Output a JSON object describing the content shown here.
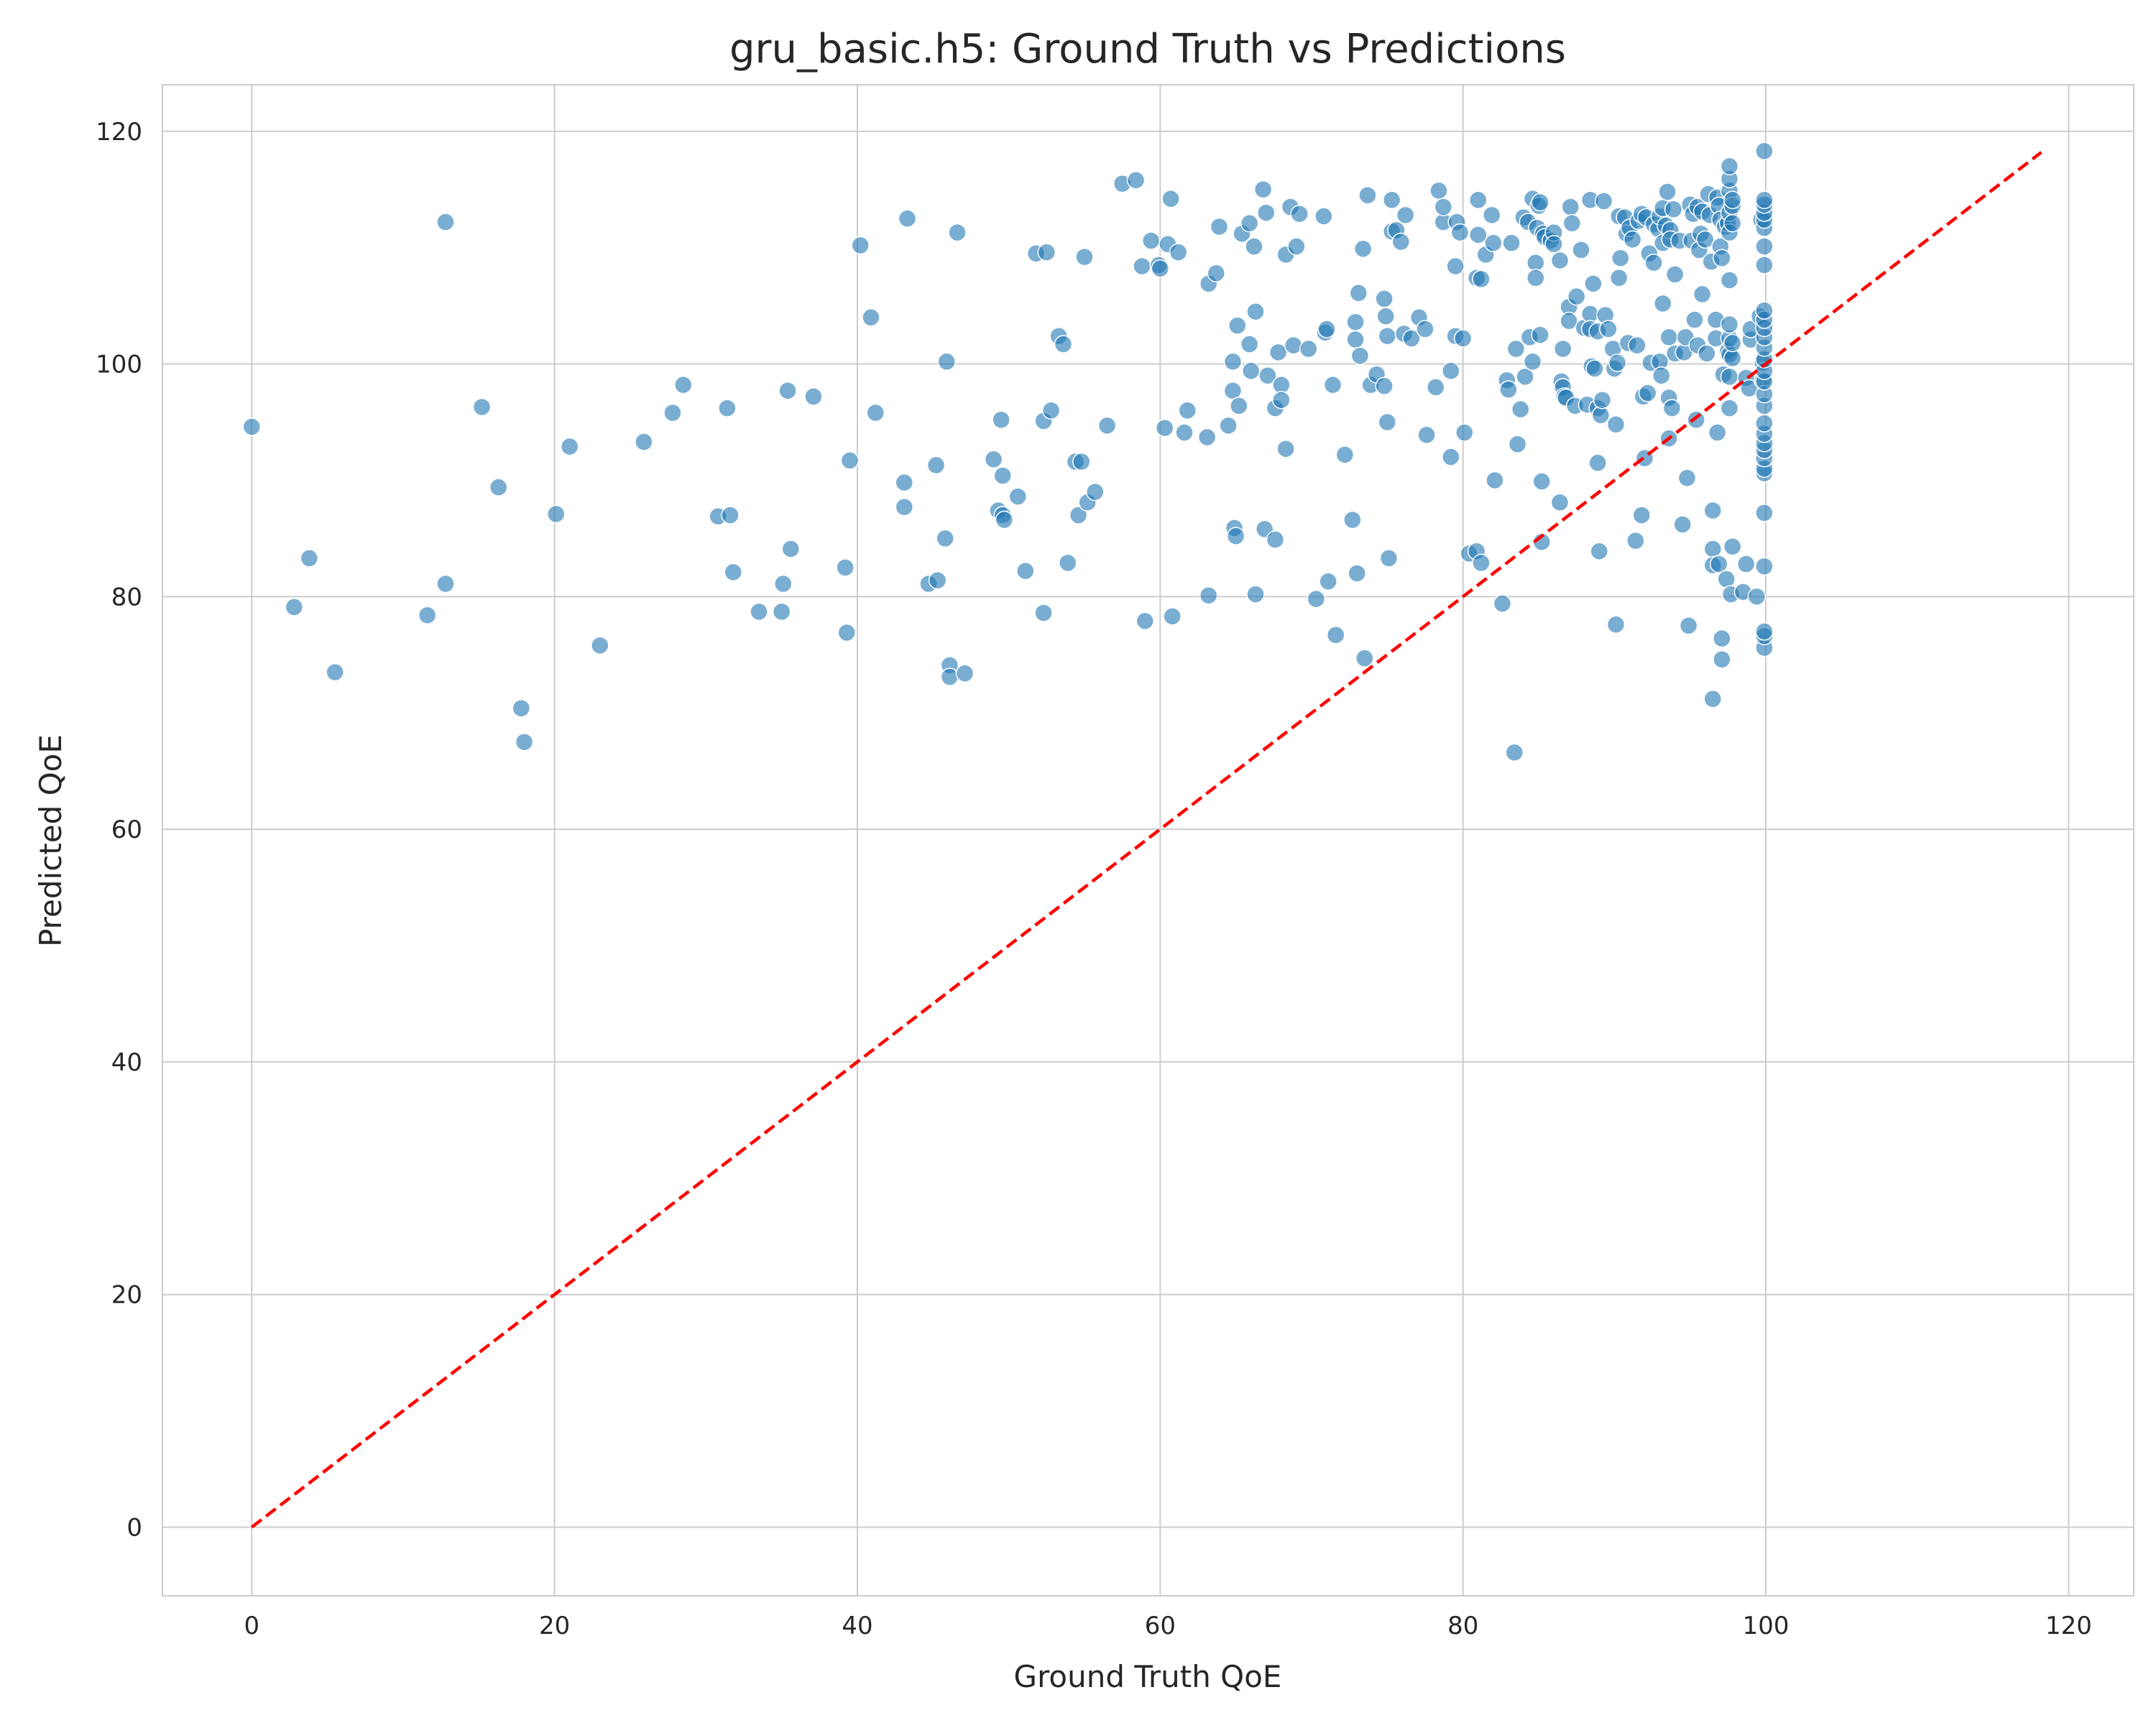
{
  "chart_data": {
    "type": "scatter",
    "title": "gru_basic.h5: Ground Truth vs Predictions",
    "xlabel": "Ground Truth QoE",
    "ylabel": "Predicted QoE",
    "xlim": [
      -5.9,
      124.3
    ],
    "ylim": [
      -5.9,
      124.0
    ],
    "xticks": [
      0,
      20,
      40,
      60,
      80,
      100,
      120
    ],
    "yticks": [
      0,
      20,
      40,
      60,
      80,
      100,
      120
    ],
    "grid": true,
    "reference_line": {
      "x": [
        0,
        118.2
      ],
      "y": [
        0,
        118.2
      ],
      "style": "dashed",
      "color": "#ff0000"
    },
    "marker_color": "#1f77b4",
    "points": [
      [
        0.0,
        94.6
      ],
      [
        2.8,
        79.1
      ],
      [
        3.8,
        83.3
      ],
      [
        5.5,
        73.5
      ],
      [
        11.6,
        78.4
      ],
      [
        12.8,
        112.2
      ],
      [
        12.8,
        81.1
      ],
      [
        15.2,
        96.3
      ],
      [
        16.3,
        89.4
      ],
      [
        17.8,
        70.4
      ],
      [
        18.0,
        67.5
      ],
      [
        20.1,
        87.1
      ],
      [
        21.0,
        92.9
      ],
      [
        23.0,
        75.8
      ],
      [
        25.9,
        93.3
      ],
      [
        27.8,
        95.8
      ],
      [
        28.5,
        98.2
      ],
      [
        30.8,
        86.9
      ],
      [
        31.4,
        96.2
      ],
      [
        31.6,
        87.0
      ],
      [
        31.8,
        82.1
      ],
      [
        33.5,
        78.7
      ],
      [
        35.0,
        78.7
      ],
      [
        35.1,
        81.1
      ],
      [
        35.4,
        97.7
      ],
      [
        35.6,
        84.1
      ],
      [
        37.1,
        97.2
      ],
      [
        39.2,
        82.5
      ],
      [
        39.3,
        76.9
      ],
      [
        39.5,
        91.7
      ],
      [
        40.2,
        110.2
      ],
      [
        40.9,
        104.0
      ],
      [
        41.2,
        95.8
      ],
      [
        43.1,
        89.8
      ],
      [
        43.1,
        87.7
      ],
      [
        43.3,
        112.5
      ],
      [
        44.7,
        81.1
      ],
      [
        45.2,
        91.3
      ],
      [
        45.3,
        81.4
      ],
      [
        45.8,
        85.0
      ],
      [
        45.9,
        100.2
      ],
      [
        46.1,
        74.1
      ],
      [
        46.1,
        73.1
      ],
      [
        46.6,
        111.3
      ],
      [
        47.1,
        73.4
      ],
      [
        49.0,
        91.8
      ],
      [
        49.3,
        87.4
      ],
      [
        49.5,
        95.2
      ],
      [
        49.6,
        90.4
      ],
      [
        49.6,
        87.0
      ],
      [
        49.7,
        86.6
      ],
      [
        50.6,
        88.6
      ],
      [
        51.1,
        82.2
      ],
      [
        51.8,
        109.5
      ],
      [
        52.3,
        78.6
      ],
      [
        52.3,
        95.1
      ],
      [
        52.5,
        109.6
      ],
      [
        52.8,
        96.0
      ],
      [
        53.3,
        102.4
      ],
      [
        53.6,
        101.7
      ],
      [
        53.9,
        82.9
      ],
      [
        54.4,
        91.6
      ],
      [
        54.6,
        87.0
      ],
      [
        54.8,
        91.6
      ],
      [
        55.0,
        109.2
      ],
      [
        55.2,
        88.1
      ],
      [
        55.7,
        89.0
      ],
      [
        56.5,
        94.7
      ],
      [
        57.5,
        115.5
      ],
      [
        58.4,
        115.8
      ],
      [
        58.8,
        108.4
      ],
      [
        59.0,
        77.9
      ],
      [
        59.4,
        110.6
      ],
      [
        59.9,
        108.5
      ],
      [
        60.0,
        108.2
      ],
      [
        60.3,
        94.5
      ],
      [
        60.5,
        110.3
      ],
      [
        60.7,
        114.2
      ],
      [
        60.8,
        78.3
      ],
      [
        61.2,
        109.6
      ],
      [
        61.6,
        94.1
      ],
      [
        61.8,
        96.0
      ],
      [
        63.1,
        93.7
      ],
      [
        63.2,
        106.9
      ],
      [
        63.2,
        80.1
      ],
      [
        63.7,
        107.8
      ],
      [
        63.9,
        111.8
      ],
      [
        64.5,
        94.7
      ],
      [
        64.8,
        97.7
      ],
      [
        64.8,
        100.2
      ],
      [
        64.9,
        85.9
      ],
      [
        65.0,
        85.2
      ],
      [
        65.1,
        103.3
      ],
      [
        65.2,
        96.4
      ],
      [
        65.4,
        111.2
      ],
      [
        65.9,
        101.7
      ],
      [
        65.9,
        112.1
      ],
      [
        66.0,
        99.4
      ],
      [
        66.2,
        110.1
      ],
      [
        66.3,
        104.5
      ],
      [
        66.3,
        80.2
      ],
      [
        66.8,
        115.0
      ],
      [
        66.9,
        85.8
      ],
      [
        67.0,
        113.0
      ],
      [
        67.1,
        99.0
      ],
      [
        67.6,
        84.9
      ],
      [
        67.6,
        96.2
      ],
      [
        67.8,
        101.0
      ],
      [
        68.0,
        98.2
      ],
      [
        68.0,
        96.9
      ],
      [
        68.3,
        109.4
      ],
      [
        68.3,
        92.7
      ],
      [
        68.6,
        113.5
      ],
      [
        68.8,
        101.6
      ],
      [
        69.0,
        110.1
      ],
      [
        69.2,
        112.9
      ],
      [
        69.8,
        101.3
      ],
      [
        70.3,
        79.8
      ],
      [
        70.8,
        112.7
      ],
      [
        70.9,
        102.7
      ],
      [
        71.0,
        103.0
      ],
      [
        71.1,
        81.3
      ],
      [
        71.4,
        98.2
      ],
      [
        71.6,
        76.7
      ],
      [
        72.2,
        92.2
      ],
      [
        72.7,
        86.6
      ],
      [
        72.9,
        102.1
      ],
      [
        72.9,
        103.6
      ],
      [
        73.0,
        82.0
      ],
      [
        73.1,
        106.1
      ],
      [
        73.2,
        100.7
      ],
      [
        73.4,
        109.9
      ],
      [
        73.5,
        74.7
      ],
      [
        73.7,
        114.5
      ],
      [
        73.9,
        98.2
      ],
      [
        74.3,
        99.1
      ],
      [
        74.8,
        98.1
      ],
      [
        74.8,
        105.6
      ],
      [
        74.9,
        104.1
      ],
      [
        75.0,
        102.4
      ],
      [
        75.0,
        95.0
      ],
      [
        75.1,
        83.3
      ],
      [
        75.3,
        111.4
      ],
      [
        75.3,
        114.1
      ],
      [
        75.6,
        111.5
      ],
      [
        75.9,
        110.5
      ],
      [
        76.1,
        102.6
      ],
      [
        76.2,
        112.8
      ],
      [
        76.6,
        102.2
      ],
      [
        77.1,
        104.0
      ],
      [
        77.5,
        103.0
      ],
      [
        77.6,
        93.9
      ],
      [
        78.2,
        98.0
      ],
      [
        78.4,
        114.9
      ],
      [
        78.7,
        112.2
      ],
      [
        78.7,
        113.5
      ],
      [
        79.2,
        99.4
      ],
      [
        79.2,
        92.0
      ],
      [
        79.5,
        102.4
      ],
      [
        79.5,
        108.4
      ],
      [
        79.6,
        112.2
      ],
      [
        79.8,
        111.3
      ],
      [
        80.0,
        102.2
      ],
      [
        80.1,
        94.1
      ],
      [
        80.4,
        83.7
      ],
      [
        80.9,
        83.9
      ],
      [
        80.9,
        107.4
      ],
      [
        81.0,
        114.1
      ],
      [
        81.0,
        111.1
      ],
      [
        81.2,
        107.3
      ],
      [
        81.2,
        82.9
      ],
      [
        81.5,
        109.4
      ],
      [
        81.9,
        112.8
      ],
      [
        82.0,
        110.4
      ],
      [
        82.1,
        90.0
      ],
      [
        82.6,
        79.4
      ],
      [
        82.9,
        98.6
      ],
      [
        83.0,
        97.8
      ],
      [
        83.2,
        110.4
      ],
      [
        83.4,
        66.6
      ],
      [
        83.5,
        101.3
      ],
      [
        83.6,
        93.1
      ],
      [
        83.8,
        96.1
      ],
      [
        84.0,
        112.6
      ],
      [
        84.1,
        98.9
      ],
      [
        84.3,
        112.2
      ],
      [
        84.4,
        102.3
      ],
      [
        84.6,
        114.2
      ],
      [
        84.6,
        100.2
      ],
      [
        84.8,
        108.7
      ],
      [
        84.8,
        107.4
      ],
      [
        84.9,
        111.7
      ],
      [
        85.0,
        113.6
      ],
      [
        85.1,
        102.5
      ],
      [
        85.1,
        113.9
      ],
      [
        85.2,
        89.9
      ],
      [
        85.2,
        84.7
      ],
      [
        85.3,
        111.2
      ],
      [
        85.4,
        110.9
      ],
      [
        85.8,
        110.6
      ],
      [
        86.0,
        111.3
      ],
      [
        86.0,
        110.3
      ],
      [
        86.4,
        108.9
      ],
      [
        86.4,
        88.1
      ],
      [
        86.5,
        98.5
      ],
      [
        86.6,
        98.0
      ],
      [
        86.6,
        101.3
      ],
      [
        86.7,
        97.2
      ],
      [
        86.8,
        97.1
      ],
      [
        87.0,
        104.9
      ],
      [
        87.0,
        103.7
      ],
      [
        87.1,
        113.5
      ],
      [
        87.2,
        112.1
      ],
      [
        87.4,
        96.4
      ],
      [
        87.5,
        105.8
      ],
      [
        87.8,
        109.8
      ],
      [
        88.0,
        103.1
      ],
      [
        88.2,
        96.5
      ],
      [
        88.4,
        104.3
      ],
      [
        88.4,
        103.0
      ],
      [
        88.4,
        114.1
      ],
      [
        88.5,
        99.8
      ],
      [
        88.6,
        106.9
      ],
      [
        88.7,
        99.6
      ],
      [
        88.9,
        96.2
      ],
      [
        88.9,
        91.5
      ],
      [
        88.9,
        102.8
      ],
      [
        89.0,
        83.9
      ],
      [
        89.1,
        95.6
      ],
      [
        89.2,
        96.9
      ],
      [
        89.3,
        114.0
      ],
      [
        89.4,
        104.2
      ],
      [
        89.6,
        103.0
      ],
      [
        89.9,
        101.3
      ],
      [
        90.0,
        99.6
      ],
      [
        90.1,
        94.8
      ],
      [
        90.1,
        77.6
      ],
      [
        90.2,
        100.1
      ],
      [
        90.3,
        112.7
      ],
      [
        90.3,
        107.4
      ],
      [
        90.4,
        109.1
      ],
      [
        90.7,
        112.6
      ],
      [
        90.8,
        111.2
      ],
      [
        90.9,
        101.8
      ],
      [
        91.0,
        111.7
      ],
      [
        91.2,
        110.7
      ],
      [
        91.4,
        84.8
      ],
      [
        91.5,
        101.6
      ],
      [
        91.6,
        112.3
      ],
      [
        91.8,
        112.9
      ],
      [
        91.8,
        87.0
      ],
      [
        91.9,
        97.2
      ],
      [
        92.0,
        91.9
      ],
      [
        92.1,
        112.6
      ],
      [
        92.2,
        97.5
      ],
      [
        92.3,
        109.5
      ],
      [
        92.4,
        100.1
      ],
      [
        92.6,
        112.0
      ],
      [
        92.6,
        108.7
      ],
      [
        92.9,
        111.6
      ],
      [
        93.0,
        100.2
      ],
      [
        93.0,
        112.7
      ],
      [
        93.1,
        99.0
      ],
      [
        93.2,
        105.2
      ],
      [
        93.2,
        113.4
      ],
      [
        93.2,
        110.4
      ],
      [
        93.4,
        111.9
      ],
      [
        93.5,
        114.8
      ],
      [
        93.6,
        93.6
      ],
      [
        93.6,
        97.1
      ],
      [
        93.6,
        102.3
      ],
      [
        93.7,
        111.5
      ],
      [
        93.7,
        110.7
      ],
      [
        93.8,
        96.2
      ],
      [
        93.9,
        113.3
      ],
      [
        94.0,
        100.9
      ],
      [
        94.0,
        107.7
      ],
      [
        94.3,
        110.6
      ],
      [
        94.5,
        86.2
      ],
      [
        94.6,
        101.0
      ],
      [
        94.7,
        102.3
      ],
      [
        94.8,
        90.2
      ],
      [
        94.9,
        77.5
      ],
      [
        95.0,
        113.7
      ],
      [
        95.1,
        110.6
      ],
      [
        95.2,
        112.9
      ],
      [
        95.3,
        103.8
      ],
      [
        95.4,
        95.2
      ],
      [
        95.5,
        101.6
      ],
      [
        95.5,
        113.5
      ],
      [
        95.6,
        109.8
      ],
      [
        95.7,
        111.2
      ],
      [
        95.8,
        106.0
      ],
      [
        95.8,
        113.1
      ],
      [
        96.0,
        110.7
      ],
      [
        96.1,
        100.9
      ],
      [
        96.2,
        114.6
      ],
      [
        96.3,
        112.8
      ],
      [
        96.4,
        108.8
      ],
      [
        96.5,
        87.4
      ],
      [
        96.5,
        84.1
      ],
      [
        96.5,
        71.2
      ],
      [
        96.5,
        82.7
      ],
      [
        96.7,
        102.2
      ],
      [
        96.7,
        103.8
      ],
      [
        96.8,
        94.1
      ],
      [
        96.8,
        114.3
      ],
      [
        96.9,
        82.8
      ],
      [
        96.9,
        113.6
      ],
      [
        97.0,
        112.4
      ],
      [
        97.0,
        110.1
      ],
      [
        97.1,
        109.1
      ],
      [
        97.1,
        74.6
      ],
      [
        97.1,
        76.4
      ],
      [
        97.2,
        99.1
      ],
      [
        97.3,
        111.8
      ],
      [
        97.4,
        81.5
      ],
      [
        97.5,
        101.1
      ],
      [
        97.5,
        112.1
      ],
      [
        97.6,
        96.2
      ],
      [
        97.6,
        107.2
      ],
      [
        97.6,
        100.8
      ],
      [
        97.6,
        102.2
      ],
      [
        97.6,
        103.4
      ],
      [
        97.6,
        98.9
      ],
      [
        97.6,
        113.0
      ],
      [
        97.6,
        114.9
      ],
      [
        97.6,
        111.3
      ],
      [
        97.6,
        115.9
      ],
      [
        97.6,
        117.0
      ],
      [
        97.7,
        80.2
      ],
      [
        97.8,
        84.3
      ],
      [
        97.8,
        100.5
      ],
      [
        97.8,
        101.8
      ],
      [
        97.8,
        113.6
      ],
      [
        97.8,
        112.1
      ],
      [
        97.8,
        114.1
      ],
      [
        98.5,
        80.4
      ],
      [
        98.7,
        82.8
      ],
      [
        98.7,
        98.8
      ],
      [
        98.9,
        97.9
      ],
      [
        99.0,
        102.1
      ],
      [
        99.0,
        103.0
      ],
      [
        99.4,
        80.0
      ],
      [
        99.6,
        104.1
      ],
      [
        99.7,
        112.4
      ],
      [
        99.8,
        98.6
      ],
      [
        99.8,
        100.1
      ],
      [
        99.9,
        75.6
      ],
      [
        99.9,
        76.6
      ],
      [
        99.9,
        77.0
      ],
      [
        99.9,
        82.6
      ],
      [
        99.9,
        87.2
      ],
      [
        99.9,
        90.6
      ],
      [
        99.9,
        91.0
      ],
      [
        99.9,
        91.9
      ],
      [
        99.9,
        92.6
      ],
      [
        99.9,
        93.2
      ],
      [
        99.9,
        94.0
      ],
      [
        99.9,
        94.9
      ],
      [
        99.9,
        96.4
      ],
      [
        99.9,
        97.4
      ],
      [
        99.9,
        98.5
      ],
      [
        99.9,
        99.4
      ],
      [
        99.9,
        100.4
      ],
      [
        99.9,
        101.4
      ],
      [
        99.9,
        102.3
      ],
      [
        99.9,
        103.1
      ],
      [
        99.9,
        103.8
      ],
      [
        99.9,
        104.6
      ],
      [
        99.9,
        108.5
      ],
      [
        99.9,
        110.1
      ],
      [
        99.9,
        111.7
      ],
      [
        99.9,
        112.4
      ],
      [
        99.9,
        113.0
      ],
      [
        99.9,
        113.7
      ],
      [
        99.9,
        114.1
      ],
      [
        99.9,
        118.3
      ]
    ]
  }
}
